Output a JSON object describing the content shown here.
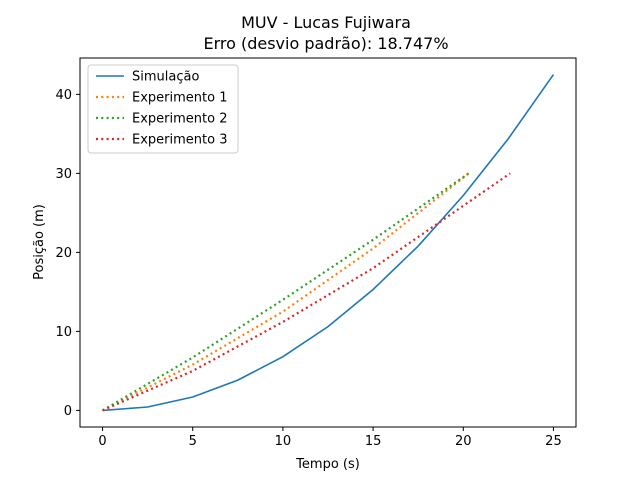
{
  "chart_data": {
    "type": "line",
    "title": "MUV - Lucas Fujiwara",
    "subtitle": "Erro (desvio padrão): 18.747%",
    "xlabel": "Tempo (s)",
    "ylabel": "Posição (m)",
    "xlim": [
      -1.25,
      26.25
    ],
    "ylim": [
      -2.1,
      44.6
    ],
    "xticks": [
      0,
      5,
      10,
      15,
      20,
      25
    ],
    "yticks": [
      0,
      10,
      20,
      30,
      40
    ],
    "grid": false,
    "legend_position": "upper-left",
    "series": [
      {
        "name": "Simulação",
        "color": "#1f77b4",
        "style": "solid",
        "x": [
          0,
          2.5,
          5,
          7.5,
          10,
          12.5,
          15,
          17.5,
          20,
          22.5,
          25
        ],
        "y": [
          0,
          0.43,
          1.7,
          3.83,
          6.8,
          10.6,
          15.3,
          20.8,
          27.2,
          34.4,
          42.5
        ]
      },
      {
        "name": "Experimento 1",
        "color": "#ff7f0e",
        "style": "dotted",
        "x": [
          0,
          5,
          10,
          15,
          20.3
        ],
        "y": [
          0,
          5.8,
          12.5,
          20.5,
          30
        ]
      },
      {
        "name": "Experimento 2",
        "color": "#2ca02c",
        "style": "dotted",
        "x": [
          0,
          5,
          10,
          15,
          20.3
        ],
        "y": [
          0,
          6.7,
          14.0,
          21.6,
          30
        ]
      },
      {
        "name": "Experimento 3",
        "color": "#d62728",
        "style": "dotted",
        "x": [
          0,
          5,
          10,
          15,
          22.6
        ],
        "y": [
          0,
          5.0,
          11.2,
          18.0,
          30
        ]
      }
    ]
  }
}
